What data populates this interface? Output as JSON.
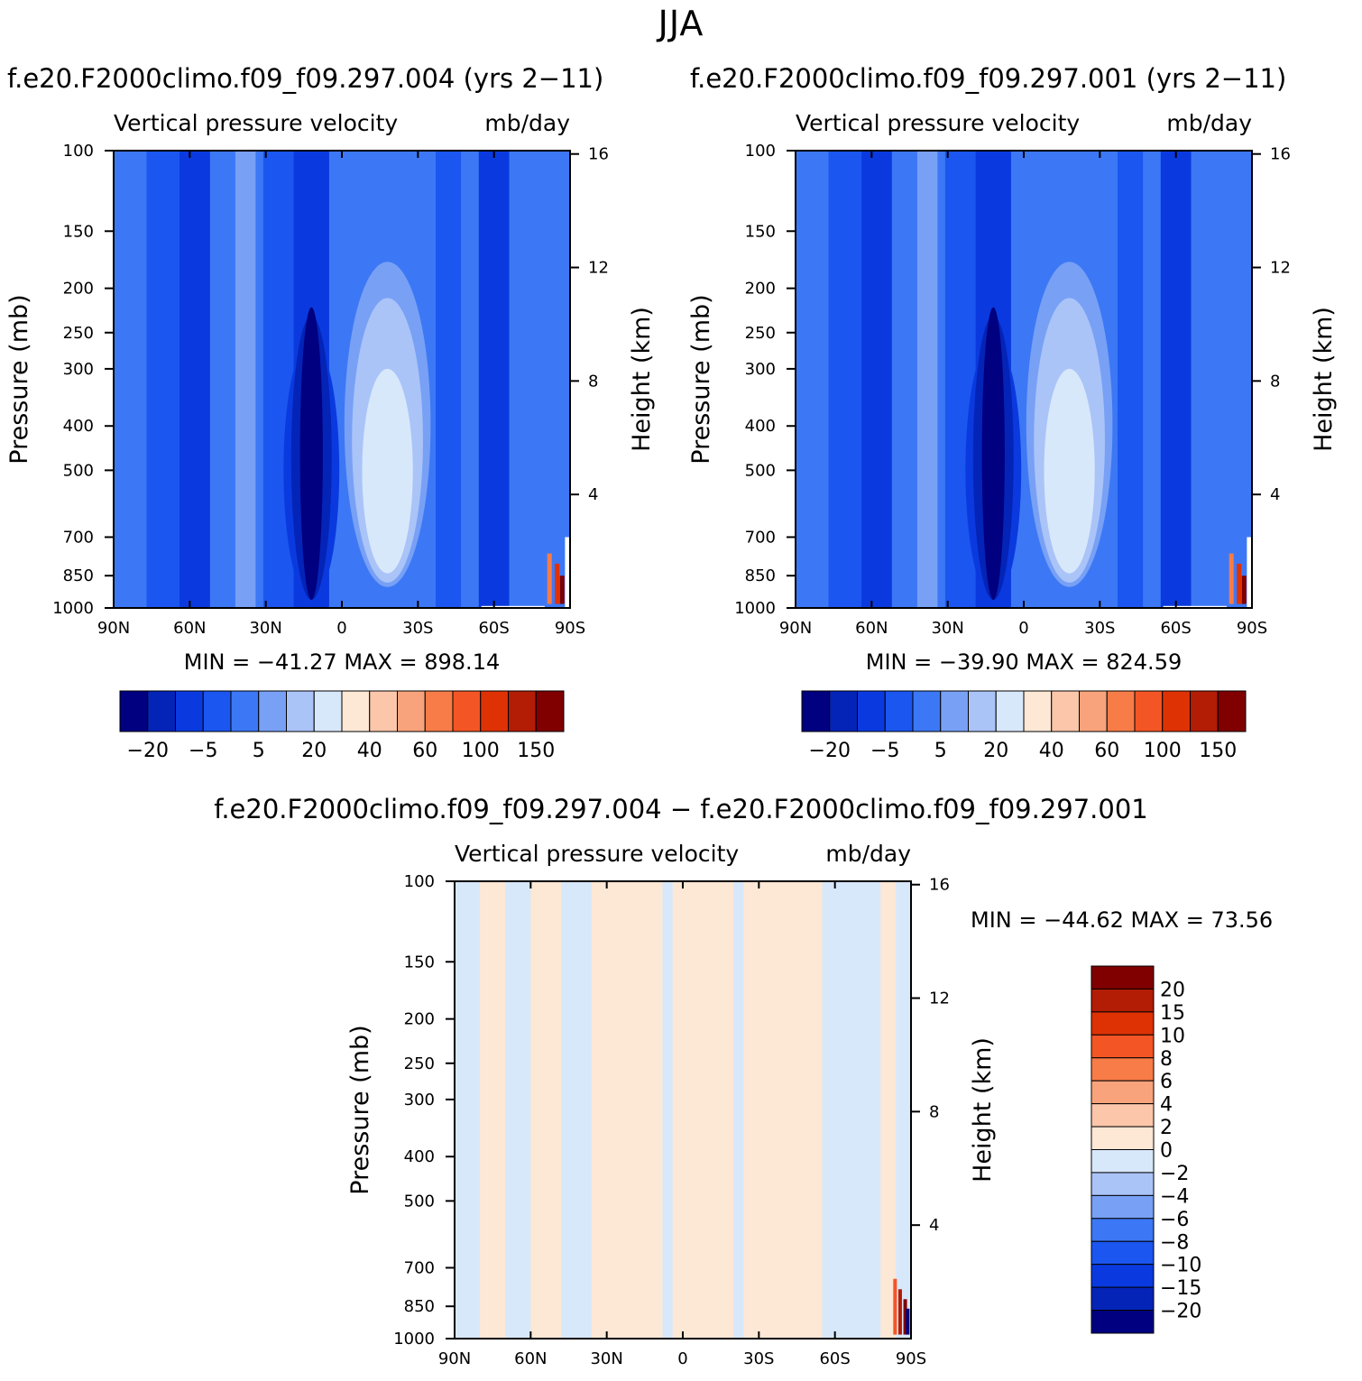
{
  "figure_title": "JJA",
  "diff_title": "f.e20.F2000climo.f09_f09.297.004 − f.e20.F2000climo.f09_f09.297.001",
  "chart_data": [
    {
      "type": "heatmap",
      "run_title": "f.e20.F2000climo.f09_f09.297.004 (yrs 2−11)",
      "title": "Vertical pressure velocity",
      "units": "mb/day",
      "ylabel": "Pressure (mb)",
      "ylabel_right": "Height (km)",
      "x_ticks": [
        "90N",
        "60N",
        "30N",
        "0",
        "30S",
        "60S",
        "90S"
      ],
      "y_ticks": [
        100,
        150,
        200,
        250,
        300,
        400,
        500,
        700,
        850,
        1000
      ],
      "y_right_ticks": [
        16,
        12,
        8,
        4
      ],
      "y_scale": "log",
      "ylim": [
        1000,
        100
      ],
      "xlim": [
        90,
        -90
      ],
      "stats": "MIN = −41.27   MAX = 898.14",
      "colorbar": {
        "orientation": "horizontal",
        "labels": [
          "−20",
          "−5",
          "5",
          "20",
          "40",
          "60",
          "100",
          "150"
        ],
        "colors": [
          "#000080",
          "#0424b8",
          "#0a3adf",
          "#1a56ef",
          "#3c78f5",
          "#78a0f5",
          "#aac4f8",
          "#d8e8fb",
          "#fde7d5",
          "#fbc6aa",
          "#f8a37c",
          "#f87c48",
          "#f45525",
          "#de3205",
          "#b31c05",
          "#800000"
        ]
      },
      "features": [
        {
          "lat": 12,
          "p_top": 220,
          "p_bottom": 1000,
          "level": "-20"
        },
        {
          "lat": -18,
          "p_top": 175,
          "p_bottom": 900,
          "level": "20"
        }
      ]
    },
    {
      "type": "heatmap",
      "run_title": "f.e20.F2000climo.f09_f09.297.001 (yrs 2−11)",
      "title": "Vertical pressure velocity",
      "units": "mb/day",
      "ylabel": "Pressure (mb)",
      "ylabel_right": "Height (km)",
      "x_ticks": [
        "90N",
        "60N",
        "30N",
        "0",
        "30S",
        "60S",
        "90S"
      ],
      "y_ticks": [
        100,
        150,
        200,
        250,
        300,
        400,
        500,
        700,
        850,
        1000
      ],
      "y_right_ticks": [
        16,
        12,
        8,
        4
      ],
      "y_scale": "log",
      "ylim": [
        1000,
        100
      ],
      "xlim": [
        90,
        -90
      ],
      "stats": "MIN = −39.90   MAX = 824.59",
      "colorbar": {
        "orientation": "horizontal",
        "labels": [
          "−20",
          "−5",
          "5",
          "20",
          "40",
          "60",
          "100",
          "150"
        ],
        "colors": [
          "#000080",
          "#0424b8",
          "#0a3adf",
          "#1a56ef",
          "#3c78f5",
          "#78a0f5",
          "#aac4f8",
          "#d8e8fb",
          "#fde7d5",
          "#fbc6aa",
          "#f8a37c",
          "#f87c48",
          "#f45525",
          "#de3205",
          "#b31c05",
          "#800000"
        ]
      },
      "features": [
        {
          "lat": 12,
          "p_top": 220,
          "p_bottom": 1000,
          "level": "-20"
        },
        {
          "lat": -18,
          "p_top": 175,
          "p_bottom": 900,
          "level": "20"
        }
      ]
    },
    {
      "type": "heatmap",
      "title": "Vertical pressure velocity",
      "units": "mb/day",
      "ylabel": "Pressure (mb)",
      "ylabel_right": "Height (km)",
      "x_ticks": [
        "90N",
        "60N",
        "30N",
        "0",
        "30S",
        "60S",
        "90S"
      ],
      "y_ticks": [
        100,
        150,
        200,
        250,
        300,
        400,
        500,
        700,
        850,
        1000
      ],
      "y_right_ticks": [
        16,
        12,
        8,
        4
      ],
      "y_scale": "log",
      "ylim": [
        1000,
        100
      ],
      "xlim": [
        90,
        -90
      ],
      "stats": "MIN = −44.62   MAX =  73.56",
      "colorbar": {
        "orientation": "vertical",
        "labels": [
          "20",
          "15",
          "10",
          "8",
          "6",
          "4",
          "2",
          "0",
          "−2",
          "−4",
          "−6",
          "−8",
          "−10",
          "−15",
          "−20"
        ],
        "colors": [
          "#800000",
          "#b31c05",
          "#de3205",
          "#f45525",
          "#f87c48",
          "#f8a37c",
          "#fbc6aa",
          "#fde7d5",
          "#d8e8fb",
          "#aac4f8",
          "#78a0f5",
          "#3c78f5",
          "#1a56ef",
          "#0a3adf",
          "#0424b8",
          "#000080"
        ]
      }
    }
  ]
}
